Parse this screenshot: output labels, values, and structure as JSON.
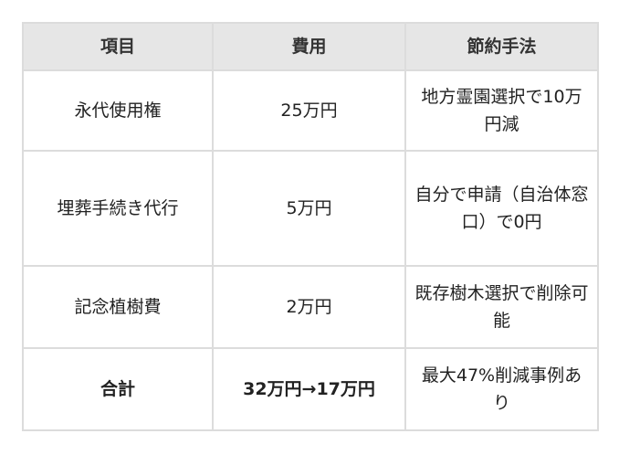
{
  "table": {
    "headers": [
      "項目",
      "費用",
      "節約手法"
    ],
    "rows": [
      [
        "永代使用権",
        "25万円",
        "地方霊園選択で10万円減"
      ],
      [
        "埋葬手続き代行",
        "5万円",
        "自分で申請（自治体窓口）で0円"
      ],
      [
        "記念植樹費",
        "2万円",
        "既存樹木選択で削除可能"
      ],
      [
        "合計",
        "32万円→17万円",
        "最大47%削減事例あり"
      ]
    ]
  }
}
